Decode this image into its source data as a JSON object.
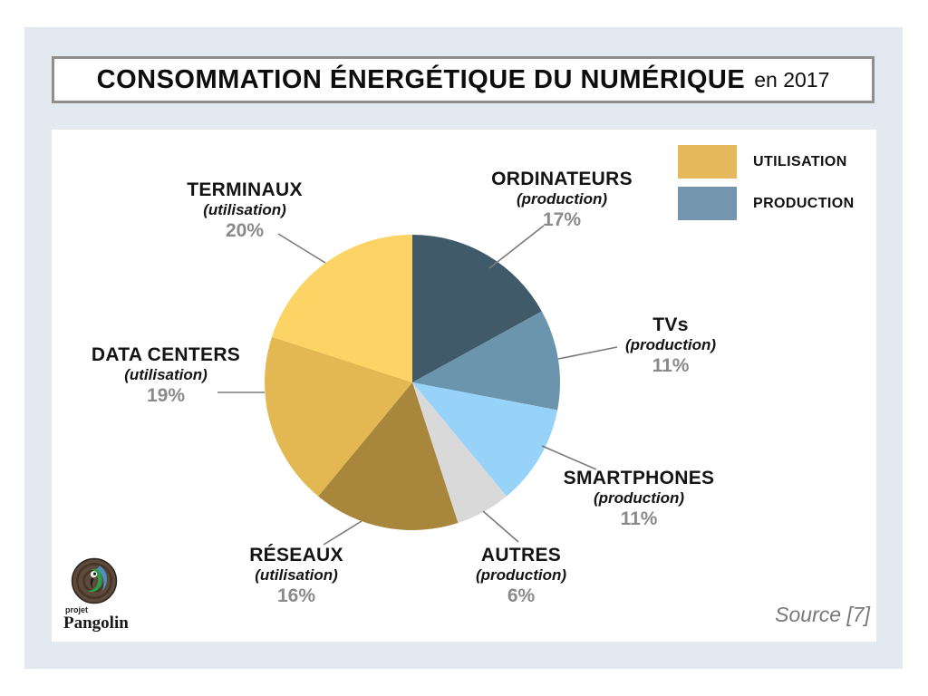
{
  "header": {
    "title_main": "CONSOMMATION ÉNERGÉTIQUE DU NUMÉRIQUE",
    "title_suffix": "en 2017"
  },
  "legend": {
    "items": [
      {
        "label": "UTILISATION",
        "color": "#E4B85B"
      },
      {
        "label": "PRODUCTION",
        "color": "#7495AE"
      }
    ]
  },
  "chart_data": {
    "type": "pie",
    "title": "CONSOMMATION ÉNERGÉTIQUE DU NUMÉRIQUE en 2017",
    "start_angle_deg": 0,
    "direction": "clockwise",
    "legend_position": "top-right",
    "slices": [
      {
        "label": "ORDINATEURS",
        "sub": "(production)",
        "pct": "17%",
        "value": 17,
        "group": "production",
        "color": "#405A69"
      },
      {
        "label": "TVs",
        "sub": "(production)",
        "pct": "11%",
        "value": 11,
        "group": "production",
        "color": "#6A95AD"
      },
      {
        "label": "SMARTPHONES",
        "sub": "(production)",
        "pct": "11%",
        "value": 11,
        "group": "production",
        "color": "#97D2F8"
      },
      {
        "label": "AUTRES",
        "sub": "(production)",
        "pct": "6%",
        "value": 6,
        "group": "production",
        "color": "#D9D9D9"
      },
      {
        "label": "RÉSEAUX",
        "sub": "(utilisation)",
        "pct": "16%",
        "value": 16,
        "group": "utilisation",
        "color": "#A8873D"
      },
      {
        "label": "DATA CENTERS",
        "sub": "(utilisation)",
        "pct": "19%",
        "value": 19,
        "group": "utilisation",
        "color": "#E3B853"
      },
      {
        "label": "TERMINAUX",
        "sub": "(utilisation)",
        "pct": "20%",
        "value": 20,
        "group": "utilisation",
        "color": "#FBD465"
      }
    ]
  },
  "footer": {
    "source": "Source [7]",
    "logo": {
      "projet": "projet",
      "name": "Pangolin"
    }
  }
}
